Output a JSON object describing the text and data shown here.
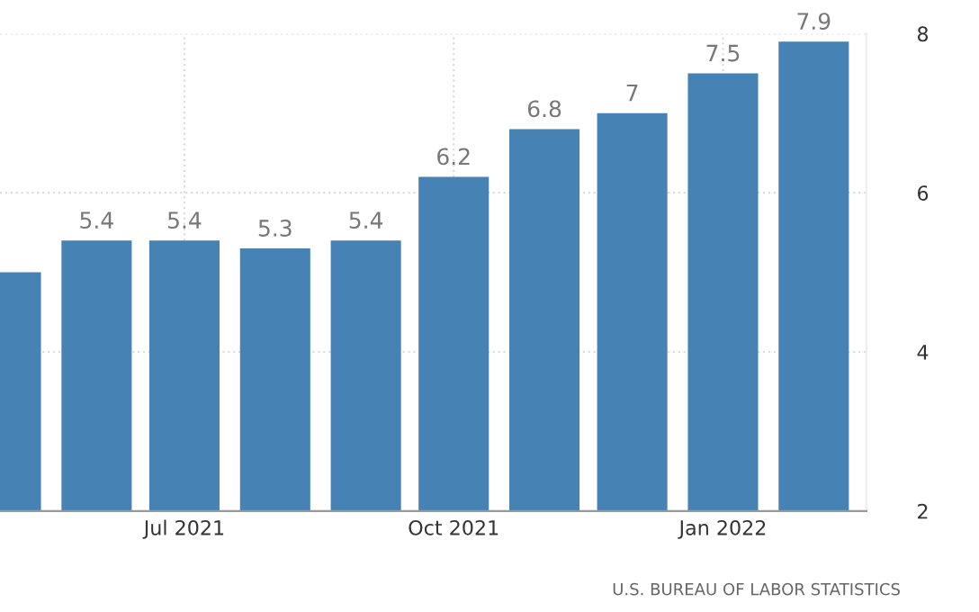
{
  "chart_data": {
    "type": "bar",
    "x": [
      "2021-05-01",
      "2021-06-01",
      "2021-07-01",
      "2021-08-01",
      "2021-09-01",
      "2021-10-01",
      "2021-11-01",
      "2021-12-01",
      "2022-01-01",
      "2022-02-01"
    ],
    "values": [
      5.0,
      5.4,
      5.4,
      5.3,
      5.4,
      6.2,
      6.8,
      7,
      7.5,
      7.9
    ],
    "value_labels": [
      null,
      "5.4",
      "5.4",
      "5.3",
      "5.4",
      "6.2",
      "6.8",
      "7",
      "7.5",
      "7.9"
    ],
    "color": "#4682b4",
    "xlim": [
      "2021-04-29",
      "2022-02-19"
    ],
    "xticks": [
      {
        "value": "2021-07-01",
        "label": "Jul 2021"
      },
      {
        "value": "2021-10-01",
        "label": "Oct 2021"
      },
      {
        "value": "2022-01-01",
        "label": "Jan 2022"
      }
    ],
    "ylim": [
      2,
      8
    ],
    "yticks": [
      2,
      4,
      6,
      8
    ],
    "grid": true,
    "annotations": [
      "U.S. BUREAU OF LABOR STATISTICS"
    ]
  }
}
